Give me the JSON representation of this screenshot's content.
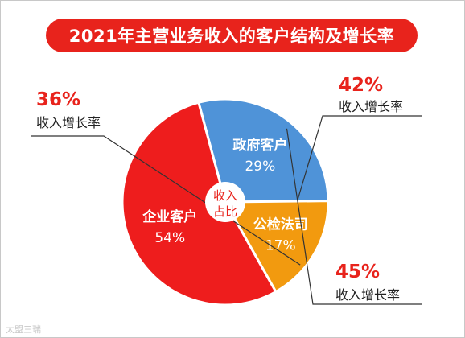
{
  "chart_data": {
    "type": "pie",
    "title": "2021年主营业务收入的客户结构及增长率",
    "center_label": [
      "收入",
      "占比"
    ],
    "colors": {
      "title_bg": "#e8231c",
      "growth_text": "#e8231c"
    },
    "slices": [
      {
        "name": "政府客户",
        "share": 29,
        "share_label": "29%",
        "growth": 42,
        "growth_label": "42%",
        "growth_caption": "收入增长率",
        "color": "#4f93d8"
      },
      {
        "name": "公检法司",
        "share": 17,
        "share_label": "17%",
        "growth": 45,
        "growth_label": "45%",
        "growth_caption": "收入增长率",
        "color": "#f29a0f"
      },
      {
        "name": "企业客户",
        "share": 54,
        "share_label": "54%",
        "growth": 36,
        "growth_label": "36%",
        "growth_caption": "收入增长率",
        "color": "#ee1d1d"
      }
    ]
  },
  "watermark": "太盟三瑞"
}
